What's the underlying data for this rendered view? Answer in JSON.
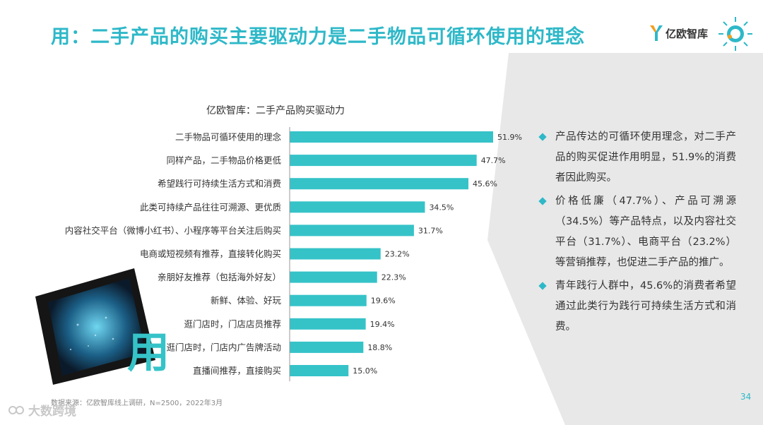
{
  "header": {
    "title": "用：二手产品的购买主要驱动力是二手物品可循环使用的理念",
    "logo_text": "亿欧智库"
  },
  "decor": {
    "big_char": "用"
  },
  "colors": {
    "accent": "#2eb8c8",
    "bar": "#35c3c8",
    "panel": "#e8e8e8"
  },
  "chart_data": {
    "type": "bar",
    "orientation": "horizontal",
    "title": "亿欧智库：二手产品购买驱动力",
    "categories": [
      "二手物品可循环使用的理念",
      "同样产品，二手物品价格更低",
      "希望践行可持续生活方式和消费",
      "此类可持续产品往往可溯源、更优质",
      "内容社交平台（微博小红书）、小程序等平台关注后购买",
      "电商或短视频有推荐，直接转化购买",
      "亲朋好友推荐（包括海外好友）",
      "新鲜、体验、好玩",
      "逛门店时，门店店员推荐",
      "逛门店时，门店内广告牌活动",
      "直播间推荐，直接购买"
    ],
    "values": [
      51.9,
      47.7,
      45.6,
      34.5,
      31.7,
      23.2,
      22.3,
      19.6,
      19.4,
      18.8,
      15.0
    ],
    "value_labels": [
      "51.9%",
      "47.7%",
      "45.6%",
      "34.5%",
      "31.7%",
      "23.2%",
      "22.3%",
      "19.6%",
      "19.4%",
      "18.8%",
      "15.0%"
    ],
    "unit": "%",
    "xlim": [
      0,
      60
    ],
    "grid": false,
    "legend": "none"
  },
  "bullets": [
    "产品传达的可循环使用理念，对二手产品的购买促进作用明显，51.9%的消费者因此购买。",
    "价格低廉（47.7%）、产品可溯源（34.5%）等产品特点，以及内容社交平台（31.7%）、电商平台（23.2%）等营销推荐，也促进二手产品的推广。",
    "青年践行人群中，45.6%的消费者希望通过此类行为践行可持续生活方式和消费。"
  ],
  "footer": {
    "source": "数据来源：亿欧智库线上调研，N=2500，2022年3月",
    "page_number": "34",
    "watermark": "大数跨境"
  }
}
